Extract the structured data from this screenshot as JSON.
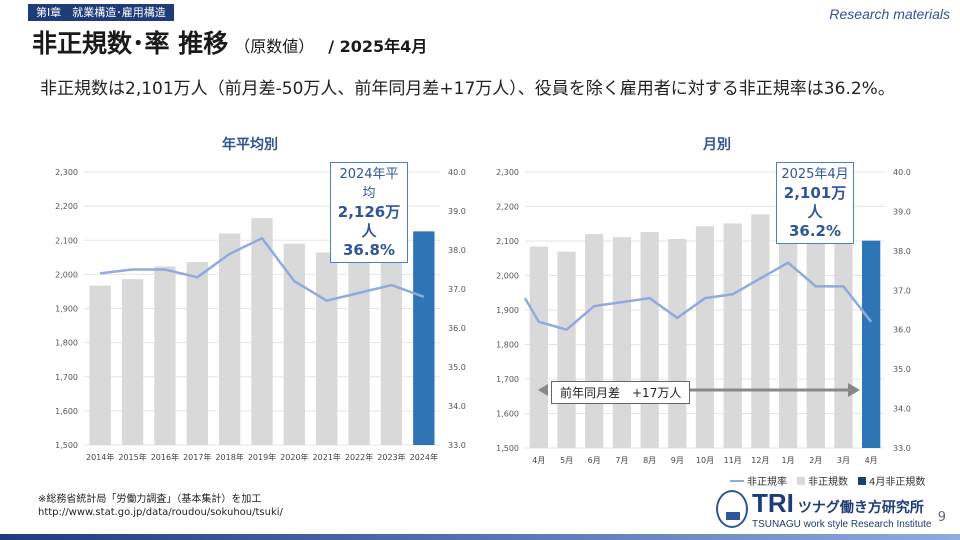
{
  "header": {
    "chapter": "第Ⅰ章　就業構造･雇用構造",
    "research_label": "Research materials",
    "title_main": "非正規数･率 推移",
    "title_sub": "（原数値）",
    "title_date": "/ 2025年4月"
  },
  "summary": "非正規数は2,101万人（前月差-50万人、前年同月差+17万人）、役員を除く雇用者に対する非正規率は36.2%。",
  "left_chart": {
    "title": "年平均別",
    "callout": {
      "line1": "2024年平均",
      "line2": "2,126万人",
      "line3": "36.8%"
    }
  },
  "right_chart": {
    "title": "月別",
    "callout": {
      "line1": "2025年4月",
      "line2": "2,101万人",
      "line3": "36.2%"
    },
    "arrow_label": "前年同月差　+17万人"
  },
  "legend": {
    "rate": "非正規率",
    "count": "非正規数",
    "latest": "4月非正規数"
  },
  "source": {
    "line1": "※総務省統計局「労働力調査」（基本集計）を加工",
    "line2": "http://www.stat.go.jp/data/roudou/sokuhou/tsuki/"
  },
  "logo": {
    "big": "TRI",
    "jp": "ツナグ働き方研究所",
    "en": "TSUNAGU work style Research Institute"
  },
  "page_number": "9",
  "colors": {
    "bar": "#d9d9d9",
    "highlight": "#2e75b6",
    "line": "#8faadc",
    "accent": "#2f5597"
  },
  "chart_data": [
    {
      "type": "bar",
      "title": "年平均別",
      "categories": [
        "2014年",
        "2015年",
        "2016年",
        "2017年",
        "2018年",
        "2019年",
        "2020年",
        "2021年",
        "2022年",
        "2023年",
        "2024年"
      ],
      "series": [
        {
          "name": "非正規数",
          "axis": "left",
          "values": [
            1967,
            1986,
            2023,
            2036,
            2120,
            2165,
            2090,
            2064,
            2101,
            2124,
            2126
          ]
        },
        {
          "name": "非正規率",
          "type": "line",
          "axis": "right",
          "values": [
            37.4,
            37.5,
            37.5,
            37.3,
            37.9,
            38.3,
            37.2,
            36.7,
            36.9,
            37.1,
            36.8
          ]
        }
      ],
      "ylim_left": [
        1500,
        2300
      ],
      "yticks_left": [
        "1,500",
        "1,600",
        "1,700",
        "1,800",
        "1,900",
        "2,000",
        "2,100",
        "2,200",
        "2,300"
      ],
      "ylim_right": [
        33.0,
        40.0
      ],
      "yticks_right": [
        "33.0",
        "34.0",
        "35.0",
        "36.0",
        "37.0",
        "38.0",
        "39.0",
        "40.0"
      ],
      "highlight_index": 10
    },
    {
      "type": "bar",
      "title": "月別",
      "categories": [
        "4月",
        "5月",
        "6月",
        "7月",
        "8月",
        "9月",
        "10月",
        "11月",
        "12月",
        "1月",
        "2月",
        "3月",
        "4月"
      ],
      "series": [
        {
          "name": "非正規数",
          "axis": "left",
          "values": [
            2084,
            2069,
            2120,
            2111,
            2126,
            2106,
            2143,
            2151,
            2177,
            2191,
            2153,
            2151,
            2101
          ]
        },
        {
          "name": "非正規率",
          "type": "line",
          "axis": "right",
          "values": [
            36.2,
            36.0,
            36.6,
            36.7,
            36.8,
            36.3,
            36.8,
            36.9,
            37.3,
            37.7,
            37.1,
            37.1,
            36.2
          ]
        }
      ],
      "line_start": 36.8,
      "ylim_left": [
        1500,
        2300
      ],
      "yticks_left": [
        "1,500",
        "1,600",
        "1,700",
        "1,800",
        "1,900",
        "2,000",
        "2,100",
        "2,200",
        "2,300"
      ],
      "ylim_right": [
        33.0,
        40.0
      ],
      "yticks_right": [
        "33.0",
        "34.0",
        "35.0",
        "36.0",
        "37.0",
        "38.0",
        "39.0",
        "40.0"
      ],
      "highlight_index": 12
    }
  ]
}
